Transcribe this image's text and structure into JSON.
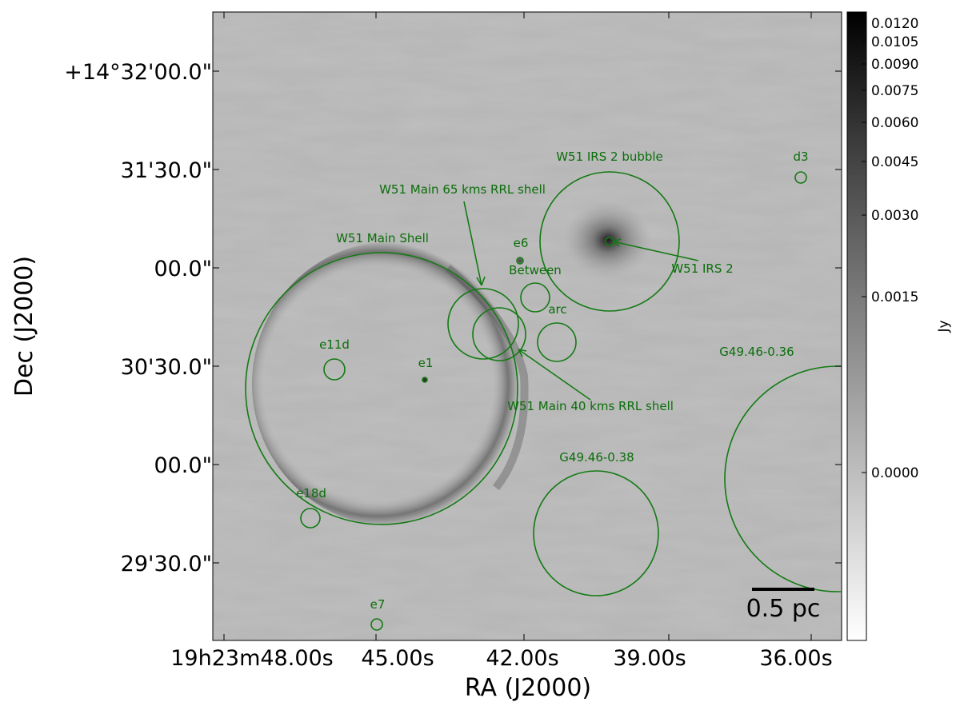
{
  "axes": {
    "xlabel": "RA (J2000)",
    "ylabel": "Dec (J2000)",
    "x_ticks": [
      "19h23m48.00s",
      "45.00s",
      "42.00s",
      "39.00s",
      "36.00s"
    ],
    "y_ticks": [
      "+14°32'00.0\"",
      "31'30.0\"",
      "00.0\"",
      "30'30.0\"",
      "00.0\"",
      "29'30.0\""
    ]
  },
  "colorbar": {
    "label": "Jy",
    "ticks": [
      "0.0120",
      "0.0105",
      "0.0090",
      "0.0075",
      "0.0060",
      "0.0045",
      "0.0030",
      "0.0015",
      "0.0000"
    ]
  },
  "scalebar": {
    "label": "0.5 pc"
  },
  "regions": {
    "irs2_bubble": "W51 IRS 2 bubble",
    "d3": "d3",
    "rrl65": "W51 Main 65 kms RRL shell",
    "main_shell": "W51 Main Shell",
    "e6": "e6",
    "between": "Between",
    "irs2": "W51 IRS 2",
    "arc": "arc",
    "e11d": "e11d",
    "e1": "e1",
    "g4946_036": "G49.46-0.36",
    "rrl40": "W51 Main 40 kms RRL shell",
    "g4946_038": "G49.46-0.38",
    "e18d": "e18d",
    "e7": "e7"
  },
  "colors": {
    "region": "#137a13",
    "image_background": "#b4b4b4"
  }
}
